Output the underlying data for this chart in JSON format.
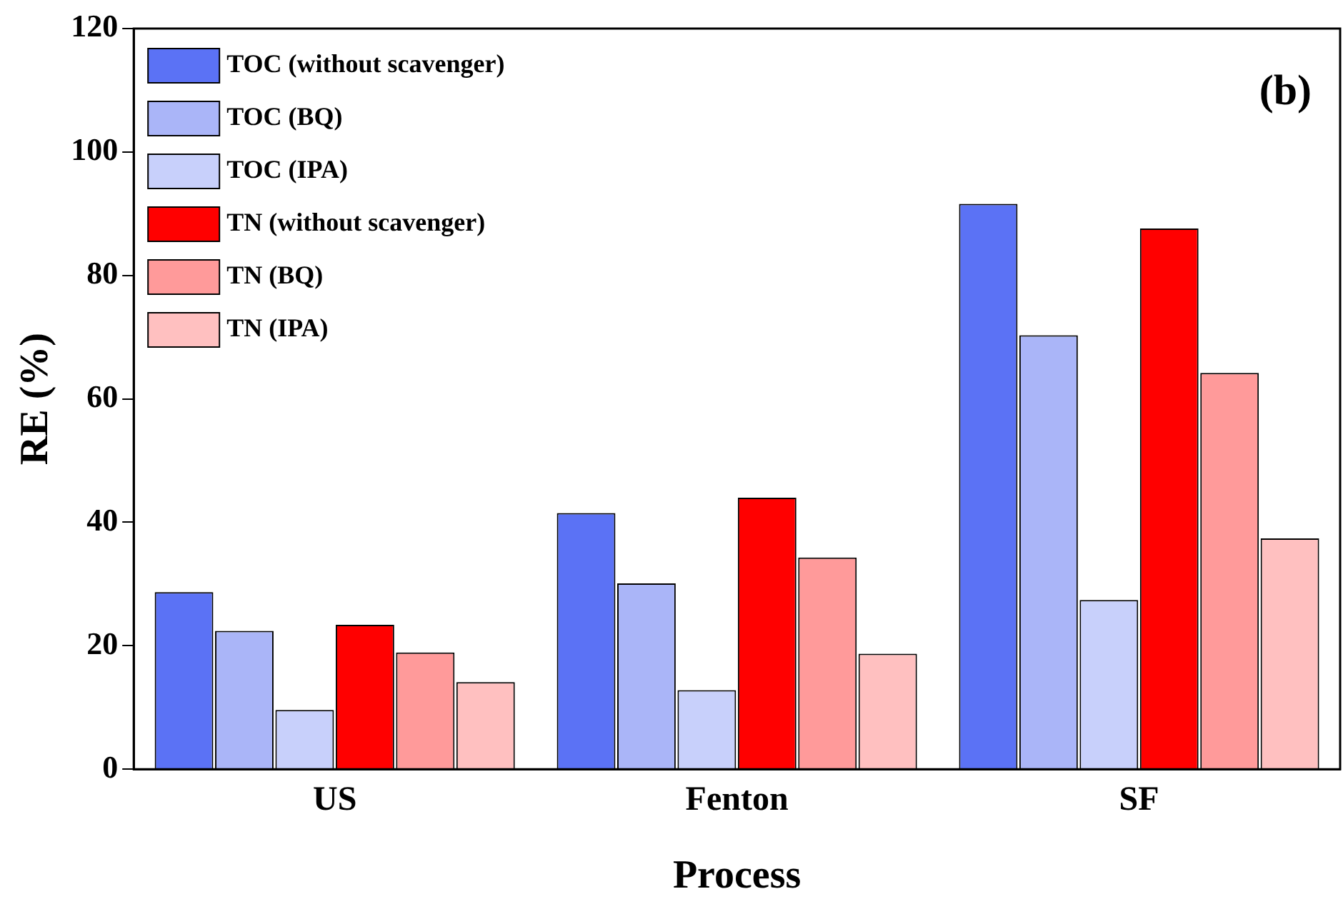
{
  "chart_data": {
    "type": "bar",
    "xlabel": "Process",
    "ylabel": "RE (%)",
    "categories": [
      "US",
      "Fenton",
      "SF"
    ],
    "series": [
      {
        "name": "TOC (without scavenger)",
        "color": "#5b72f5",
        "values": [
          28.7,
          41.5,
          91.6
        ]
      },
      {
        "name": "TOC (BQ)",
        "color": "#aab5f8",
        "values": [
          22.4,
          30.1,
          70.3
        ]
      },
      {
        "name": "TOC (IPA)",
        "color": "#c8d0fb",
        "values": [
          9.6,
          12.8,
          27.4
        ]
      },
      {
        "name": "TN (without scavenger)",
        "color": "#ff0000",
        "values": [
          23.4,
          44,
          87.6
        ]
      },
      {
        "name": "TN (BQ)",
        "color": "#ff9a9a",
        "values": [
          18.9,
          34.3,
          64.2
        ]
      },
      {
        "name": "TN (IPA)",
        "color": "#ffc0c0",
        "values": [
          14.1,
          18.7,
          37.4
        ]
      }
    ],
    "ylim": [
      0,
      120
    ],
    "yticks": [
      0,
      20,
      40,
      60,
      80,
      100,
      120
    ],
    "grid": false,
    "legend": "top left",
    "annotations": [
      "(b)"
    ]
  }
}
